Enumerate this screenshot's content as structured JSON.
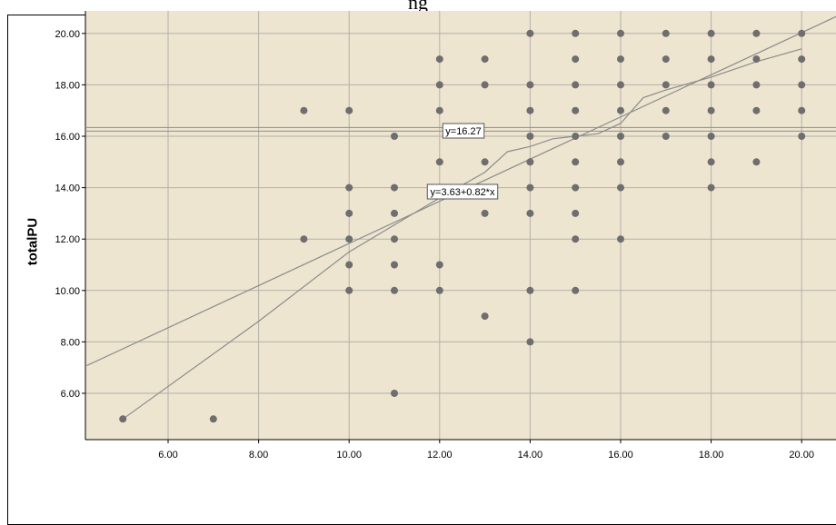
{
  "caption": {
    "text": "ng"
  },
  "chart_data": {
    "type": "scatter",
    "title": "",
    "xlabel": "",
    "ylabel": "totalPU",
    "xlim": [
      4.2,
      20.8
    ],
    "ylim": [
      4.2,
      20.8
    ],
    "x_ticks": [
      "6.00",
      "8.00",
      "10.00",
      "12.00",
      "14.00",
      "16.00",
      "18.00",
      "20.00"
    ],
    "y_ticks": [
      "6.00",
      "8.00",
      "10.00",
      "12.00",
      "14.00",
      "16.00",
      "18.00",
      "20.00"
    ],
    "grid": true,
    "background": "#ede5d0",
    "point_color": "#6e6e6e",
    "line_color": "#8c8c8c",
    "points": [
      [
        5,
        5
      ],
      [
        7,
        5
      ],
      [
        9,
        17
      ],
      [
        9,
        12
      ],
      [
        10,
        17
      ],
      [
        10,
        14
      ],
      [
        10,
        13
      ],
      [
        10,
        12
      ],
      [
        10,
        11
      ],
      [
        10,
        10
      ],
      [
        11,
        16
      ],
      [
        11,
        14
      ],
      [
        11,
        13
      ],
      [
        11,
        12
      ],
      [
        11,
        11
      ],
      [
        11,
        10
      ],
      [
        11,
        6
      ],
      [
        12,
        19
      ],
      [
        12,
        18
      ],
      [
        12,
        17
      ],
      [
        12,
        15
      ],
      [
        12,
        11
      ],
      [
        12,
        10
      ],
      [
        13,
        19
      ],
      [
        13,
        18
      ],
      [
        13,
        15
      ],
      [
        13,
        13
      ],
      [
        13,
        9
      ],
      [
        14,
        20
      ],
      [
        14,
        18
      ],
      [
        14,
        17
      ],
      [
        14,
        16
      ],
      [
        14,
        15
      ],
      [
        14,
        14
      ],
      [
        14,
        13
      ],
      [
        14,
        10
      ],
      [
        14,
        8
      ],
      [
        15,
        20
      ],
      [
        15,
        19
      ],
      [
        15,
        18
      ],
      [
        15,
        17
      ],
      [
        15,
        16
      ],
      [
        15,
        15
      ],
      [
        15,
        14
      ],
      [
        15,
        13
      ],
      [
        15,
        12
      ],
      [
        15,
        10
      ],
      [
        16,
        20
      ],
      [
        16,
        19
      ],
      [
        16,
        18
      ],
      [
        16,
        17
      ],
      [
        16,
        16
      ],
      [
        16,
        15
      ],
      [
        16,
        14
      ],
      [
        16,
        12
      ],
      [
        17,
        20
      ],
      [
        17,
        19
      ],
      [
        17,
        18
      ],
      [
        17,
        17
      ],
      [
        17,
        16
      ],
      [
        18,
        20
      ],
      [
        18,
        19
      ],
      [
        18,
        18
      ],
      [
        18,
        17
      ],
      [
        18,
        16
      ],
      [
        18,
        15
      ],
      [
        18,
        14
      ],
      [
        19,
        20
      ],
      [
        19,
        19
      ],
      [
        19,
        18
      ],
      [
        19,
        17
      ],
      [
        19,
        15
      ],
      [
        20,
        20
      ],
      [
        20,
        19
      ],
      [
        20,
        18
      ],
      [
        20,
        17
      ],
      [
        20,
        16
      ]
    ],
    "mean_line": {
      "y": 16.27,
      "label": "y=16.27"
    },
    "linear_fit": {
      "intercept": 3.63,
      "slope": 0.82,
      "label": "y=3.63+0.82*x"
    },
    "loess_curve": [
      [
        5,
        5
      ],
      [
        8,
        8.8
      ],
      [
        10,
        11.5
      ],
      [
        12,
        13.6
      ],
      [
        13,
        14.6
      ],
      [
        13.5,
        15.4
      ],
      [
        14,
        15.6
      ],
      [
        14.5,
        15.9
      ],
      [
        15,
        16.0
      ],
      [
        15.5,
        16.1
      ],
      [
        16,
        16.5
      ],
      [
        16.5,
        17.5
      ],
      [
        17,
        17.8
      ],
      [
        18,
        18.3
      ],
      [
        19,
        18.9
      ],
      [
        20,
        19.4
      ]
    ]
  }
}
